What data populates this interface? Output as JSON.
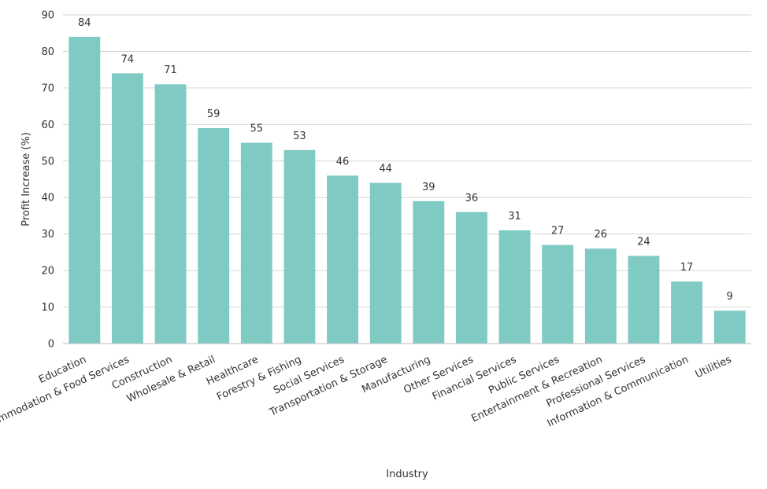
{
  "chart_data": {
    "type": "bar",
    "title": "",
    "xlabel": "Industry",
    "ylabel": "Profit Increase (%)",
    "ylim": [
      0,
      90
    ],
    "yticks": [
      0,
      10,
      20,
      30,
      40,
      50,
      60,
      70,
      80,
      90
    ],
    "grid": true,
    "bar_color": "#7fcbc3",
    "categories": [
      "Education",
      "Accommodation & Food Services",
      "Construction",
      "Wholesale & Retail",
      "Healthcare",
      "Forestry & Fishing",
      "Social Services",
      "Transportation & Storage",
      "Manufacturing",
      "Other Services",
      "Financial Services",
      "Public Services",
      "Entertainment & Recreation",
      "Professional Services",
      "Information & Communication",
      "Utilities"
    ],
    "values": [
      84,
      74,
      71,
      59,
      55,
      53,
      46,
      44,
      39,
      36,
      31,
      27,
      26,
      24,
      17,
      9
    ]
  }
}
